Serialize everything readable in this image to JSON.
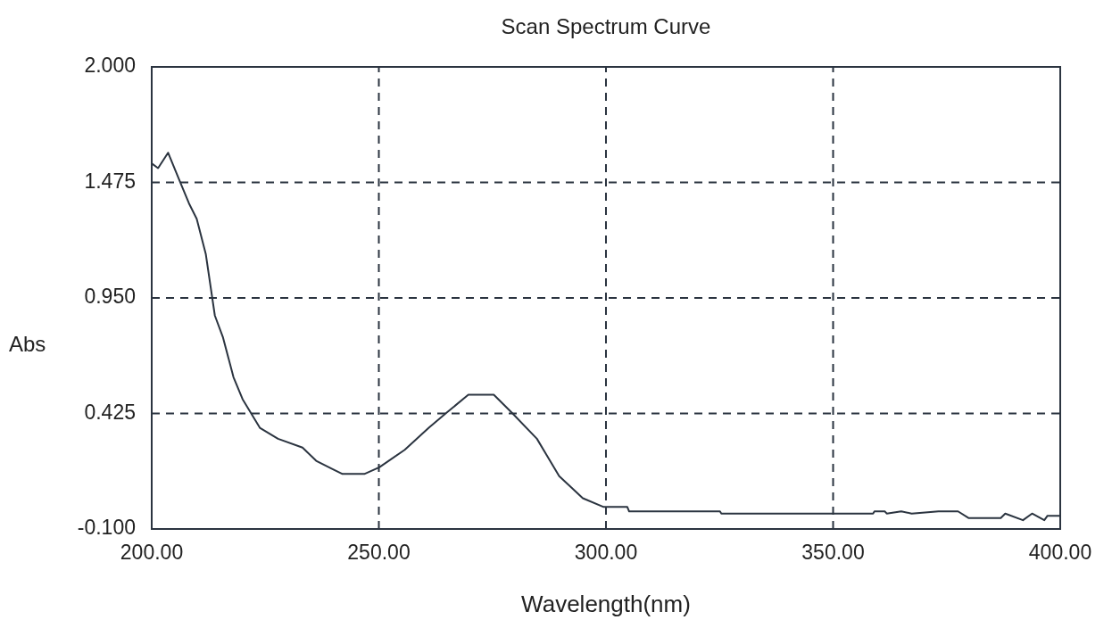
{
  "chart_data": {
    "type": "line",
    "title": "Scan Spectrum Curve",
    "xlabel": "Wavelength(nm)",
    "ylabel": "Abs",
    "x": [
      200.1,
      201.4,
      203.6,
      206.2,
      208.2,
      209.9,
      211.9,
      213.9,
      215.7,
      218.0,
      220.0,
      223.8,
      227.8,
      233.2,
      236.2,
      240.0,
      242.0,
      246.8,
      250.1,
      255.7,
      261.0,
      265.0,
      269.7,
      275.3,
      279.2,
      284.8,
      289.7,
      294.9,
      299.5,
      304.7,
      305.1,
      325.1,
      325.4,
      358.8,
      359.1,
      361.4,
      361.8,
      365.0,
      367.3,
      373.2,
      377.5,
      379.8,
      386.9,
      387.9,
      391.8,
      393.8,
      396.5,
      397.2,
      400.0
    ],
    "series": [
      {
        "color": "#2b3440",
        "values": [
          1.56,
          1.54,
          1.61,
          1.48,
          1.38,
          1.31,
          1.15,
          0.87,
          0.77,
          0.59,
          0.49,
          0.36,
          0.31,
          0.27,
          0.21,
          0.17,
          0.15,
          0.15,
          0.18,
          0.26,
          0.36,
          0.43,
          0.51,
          0.51,
          0.43,
          0.31,
          0.14,
          0.04,
          0.0,
          0.0,
          -0.02,
          -0.02,
          -0.03,
          -0.03,
          -0.02,
          -0.02,
          -0.03,
          -0.02,
          -0.03,
          -0.02,
          -0.02,
          -0.05,
          -0.05,
          -0.03,
          -0.06,
          -0.03,
          -0.06,
          -0.04,
          -0.04
        ]
      }
    ],
    "xlim": [
      200,
      400
    ],
    "xticks": [
      {
        "value": 200,
        "label": "200.00"
      },
      {
        "value": 250,
        "label": "250.00"
      },
      {
        "value": 300,
        "label": "300.00"
      },
      {
        "value": 350,
        "label": "350.00"
      },
      {
        "value": 400,
        "label": "400.00"
      }
    ],
    "ylim": [
      -0.1,
      2.0
    ],
    "yticks": [
      {
        "value": -0.1,
        "label": "-0.100"
      },
      {
        "value": 0.425,
        "label": "0.425"
      },
      {
        "value": 0.95,
        "label": "0.950"
      },
      {
        "value": 1.475,
        "label": "1.475"
      },
      {
        "value": 2.0,
        "label": "2.000"
      }
    ],
    "grid": true,
    "legend": false,
    "marker": "none",
    "line_style": "solid"
  }
}
